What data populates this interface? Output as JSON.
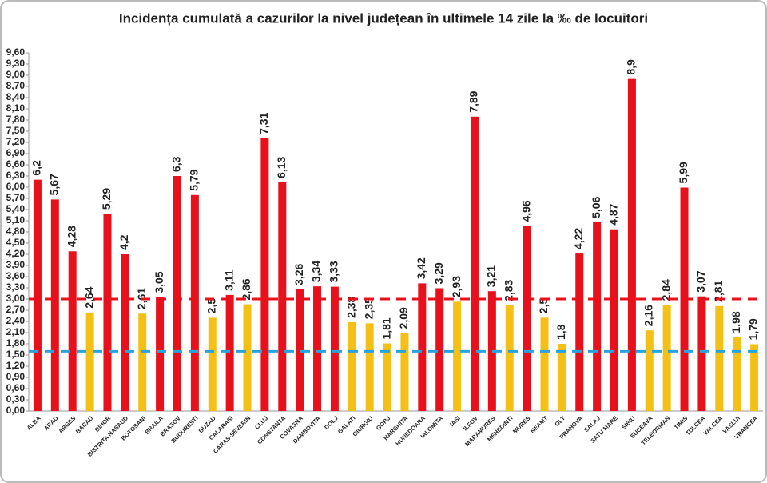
{
  "chart_data": {
    "type": "bar",
    "title": "Incidența cumulată a cazurilor la nivel județean în ultimele 14 zile la ‰ de locuitori",
    "categories": [
      "ALBA",
      "ARAD",
      "ARGES",
      "BACAU",
      "BIHOR",
      "BISTRITA NASAUD",
      "BOTOSANI",
      "BRAILA",
      "BRASOV",
      "BUCURESTI",
      "BUZAU",
      "CALARASI",
      "CARAS-SEVERIN",
      "CLUJ",
      "CONSTANTA",
      "COVASNA",
      "DAMBOVITA",
      "DOLJ",
      "GALATI",
      "GIURGIU",
      "GORJ",
      "HARGHITA",
      "HUNEDOARA",
      "IALOMITA",
      "IASI",
      "ILFOV",
      "MARAMURES",
      "MEHEDINTI",
      "MURES",
      "NEAMT",
      "OLT",
      "PRAHOVA",
      "SALAJ",
      "SATU MARE",
      "SIBIU",
      "SUCEAVA",
      "TELEORMAN",
      "TIMIS",
      "TULCEA",
      "VALCEA",
      "VASLUI",
      "VRANCEA"
    ],
    "values": [
      6.2,
      5.67,
      4.28,
      2.64,
      5.29,
      4.2,
      2.61,
      3.05,
      6.3,
      5.79,
      2.5,
      3.11,
      2.86,
      7.31,
      6.13,
      3.26,
      3.34,
      3.33,
      2.38,
      2.35,
      1.81,
      2.09,
      3.42,
      3.29,
      2.93,
      7.89,
      3.21,
      2.83,
      4.96,
      2.5,
      1.8,
      4.22,
      5.06,
      4.87,
      8.9,
      2.16,
      2.84,
      5.99,
      3.07,
      2.81,
      1.98,
      1.79
    ],
    "value_labels": [
      "6,2",
      "5,67",
      "4,28",
      "2,64",
      "5,29",
      "4,2",
      "2,61",
      "3,05",
      "6,3",
      "5,79",
      "2,5",
      "3,11",
      "2,86",
      "7,31",
      "6,13",
      "3,26",
      "3,34",
      "3,33",
      "2,38",
      "2,35",
      "1,81",
      "2,09",
      "3,42",
      "3,29",
      "2,93",
      "7,89",
      "3,21",
      "2,83",
      "4,96",
      "2,5",
      "1,8",
      "4,22",
      "5,06",
      "4,87",
      "8,9",
      "2,16",
      "2,84",
      "5,99",
      "3,07",
      "2,81",
      "1,98",
      "1,79"
    ],
    "colors": [
      "#e8101a",
      "#e8101a",
      "#e8101a",
      "#f5c016",
      "#e8101a",
      "#e8101a",
      "#f5c016",
      "#e8101a",
      "#e8101a",
      "#e8101a",
      "#f5c016",
      "#e8101a",
      "#f5c016",
      "#e8101a",
      "#e8101a",
      "#e8101a",
      "#e8101a",
      "#e8101a",
      "#f5c016",
      "#f5c016",
      "#f5c016",
      "#f5c016",
      "#e8101a",
      "#e8101a",
      "#f5c016",
      "#e8101a",
      "#e8101a",
      "#f5c016",
      "#e8101a",
      "#f5c016",
      "#f5c016",
      "#e8101a",
      "#e8101a",
      "#e8101a",
      "#e8101a",
      "#f5c016",
      "#f5c016",
      "#e8101a",
      "#e8101a",
      "#f5c016",
      "#f5c016",
      "#f5c016"
    ],
    "ylim": [
      0,
      9.6
    ],
    "yticks": [
      {
        "value": 0,
        "label": "0,00"
      },
      {
        "value": 0.3,
        "label": "0,30"
      },
      {
        "value": 0.6,
        "label": "0,60"
      },
      {
        "value": 0.9,
        "label": "0,90"
      },
      {
        "value": 1.2,
        "label": "1,20"
      },
      {
        "value": 1.5,
        "label": "1,50"
      },
      {
        "value": 1.8,
        "label": "1,80"
      },
      {
        "value": 2.1,
        "label": "2,10"
      },
      {
        "value": 2.4,
        "label": "2,40"
      },
      {
        "value": 2.7,
        "label": "2,70"
      },
      {
        "value": 3,
        "label": "3,00"
      },
      {
        "value": 3.3,
        "label": "3,30"
      },
      {
        "value": 3.6,
        "label": "3,60"
      },
      {
        "value": 3.9,
        "label": "3,90"
      },
      {
        "value": 4.2,
        "label": "4,20"
      },
      {
        "value": 4.5,
        "label": "4,50"
      },
      {
        "value": 4.8,
        "label": "4,80"
      },
      {
        "value": 5.1,
        "label": "5,10"
      },
      {
        "value": 5.4,
        "label": "5,40"
      },
      {
        "value": 5.7,
        "label": "5,70"
      },
      {
        "value": 6,
        "label": "6,00"
      },
      {
        "value": 6.3,
        "label": "6,30"
      },
      {
        "value": 6.6,
        "label": "6,60"
      },
      {
        "value": 6.9,
        "label": "6,90"
      },
      {
        "value": 7.2,
        "label": "7,20"
      },
      {
        "value": 7.5,
        "label": "7,50"
      },
      {
        "value": 7.8,
        "label": "7,80"
      },
      {
        "value": 8.1,
        "label": "8,10"
      },
      {
        "value": 8.4,
        "label": "8,40"
      },
      {
        "value": 8.7,
        "label": "8,70"
      },
      {
        "value": 9,
        "label": "9,00"
      },
      {
        "value": 9.3,
        "label": "9,30"
      },
      {
        "value": 9.6,
        "label": "9,60"
      }
    ],
    "reference_lines": [
      {
        "value": 3,
        "color": "#e8101a"
      },
      {
        "value": 1.6,
        "color": "#29a3dc"
      }
    ]
  }
}
